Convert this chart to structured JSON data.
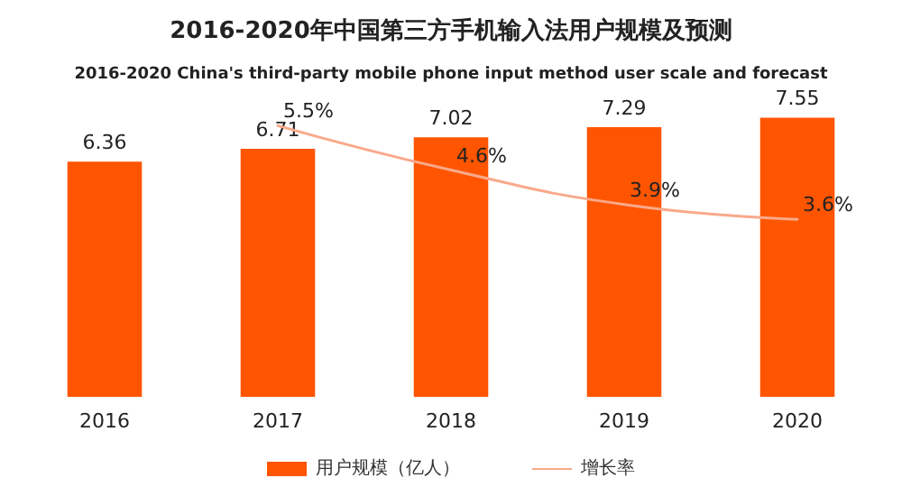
{
  "chart_data": {
    "type": "bar",
    "title": "2016-2020年中国第三方手机输入法用户规模及预测",
    "subtitle": "2016-2020 China's third-party mobile phone input method user scale and forecast",
    "categories": [
      "2016",
      "2017",
      "2018",
      "2019",
      "2020"
    ],
    "series": [
      {
        "name": "用户规模（亿人）",
        "color": "#ff5500",
        "values": [
          6.36,
          6.71,
          7.02,
          7.29,
          7.55
        ],
        "value_labels": [
          "6.36",
          "6.71",
          "7.02",
          "7.29",
          "7.55"
        ]
      },
      {
        "name": "增长率",
        "type": "line",
        "axis": "y2",
        "color": "#f9a98a",
        "values": [
          null,
          5.5,
          4.6,
          3.9,
          3.6
        ],
        "value_labels": [
          null,
          "5.5%",
          "4.6%",
          "3.9%",
          "3.6%"
        ]
      }
    ],
    "tick_labels": "x",
    "grid": false,
    "legend": "bottom",
    "marker": "none",
    "line_style": "solid"
  }
}
